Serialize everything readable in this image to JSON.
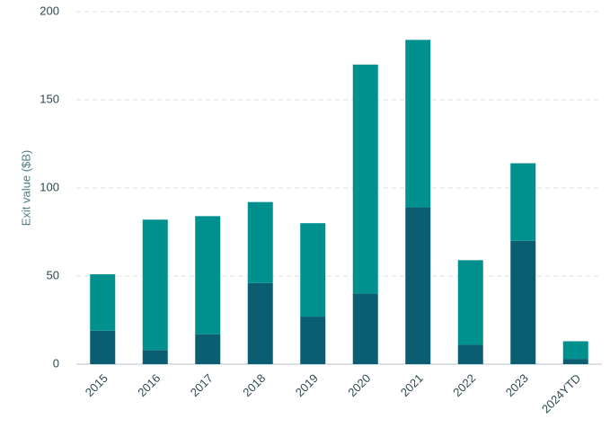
{
  "chart_data": {
    "type": "stacked_bar",
    "y_label": "Exit value ($B)",
    "categories": [
      "2015",
      "2016",
      "2017",
      "2018",
      "2019",
      "2020",
      "2021",
      "2022",
      "2023",
      "2024YTD"
    ],
    "series": [
      {
        "color": "#0b5e72",
        "values": [
          19,
          8,
          17,
          46,
          27,
          40,
          89,
          11,
          70,
          3
        ]
      },
      {
        "color": "#00918e",
        "values": [
          32,
          74,
          67,
          46,
          53,
          130,
          95,
          48,
          44,
          10
        ]
      }
    ],
    "ylim": [
      0,
      200
    ],
    "yticks": [
      0,
      50,
      100,
      150,
      200
    ],
    "grid": true
  }
}
